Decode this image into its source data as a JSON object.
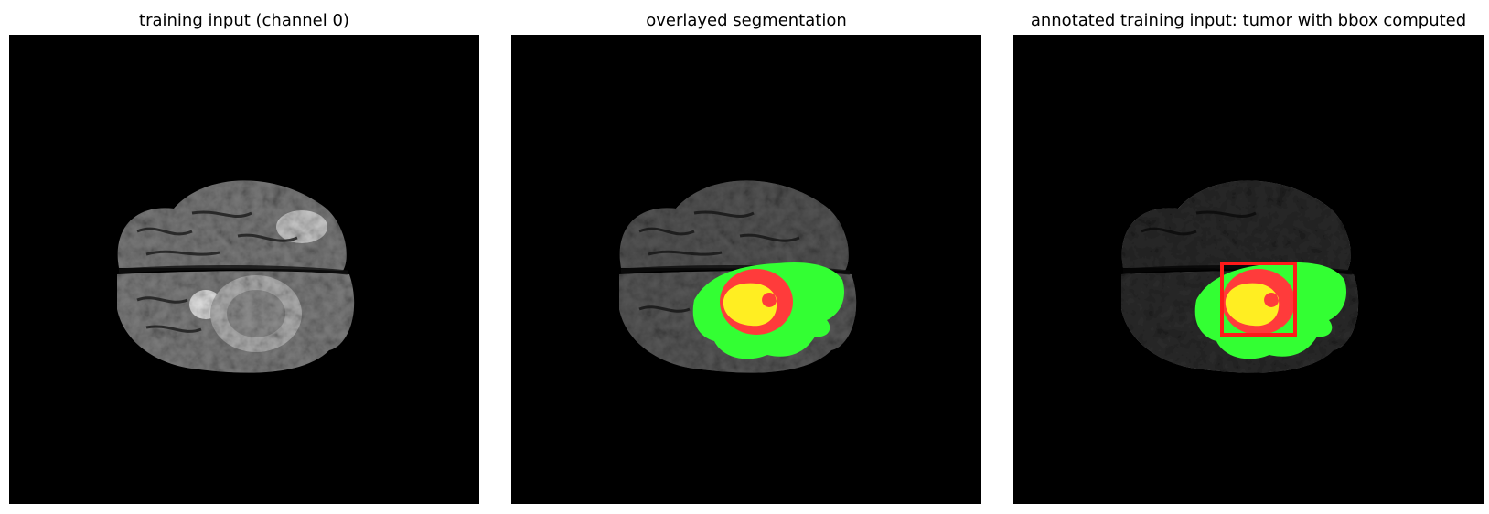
{
  "figure": {
    "panels": [
      {
        "title": "training input (channel 0)"
      },
      {
        "title": "overlayed segmentation"
      },
      {
        "title": "annotated training input: tumor with bbox computed"
      }
    ]
  },
  "colors": {
    "background": "#000000",
    "brain_tissue": "#6e6e6e",
    "edema_label": "#33ff33",
    "tumor_core_label": "#ff3333",
    "enhancing_label": "#ffee22",
    "bbox_outline": "#ff1a1a"
  }
}
